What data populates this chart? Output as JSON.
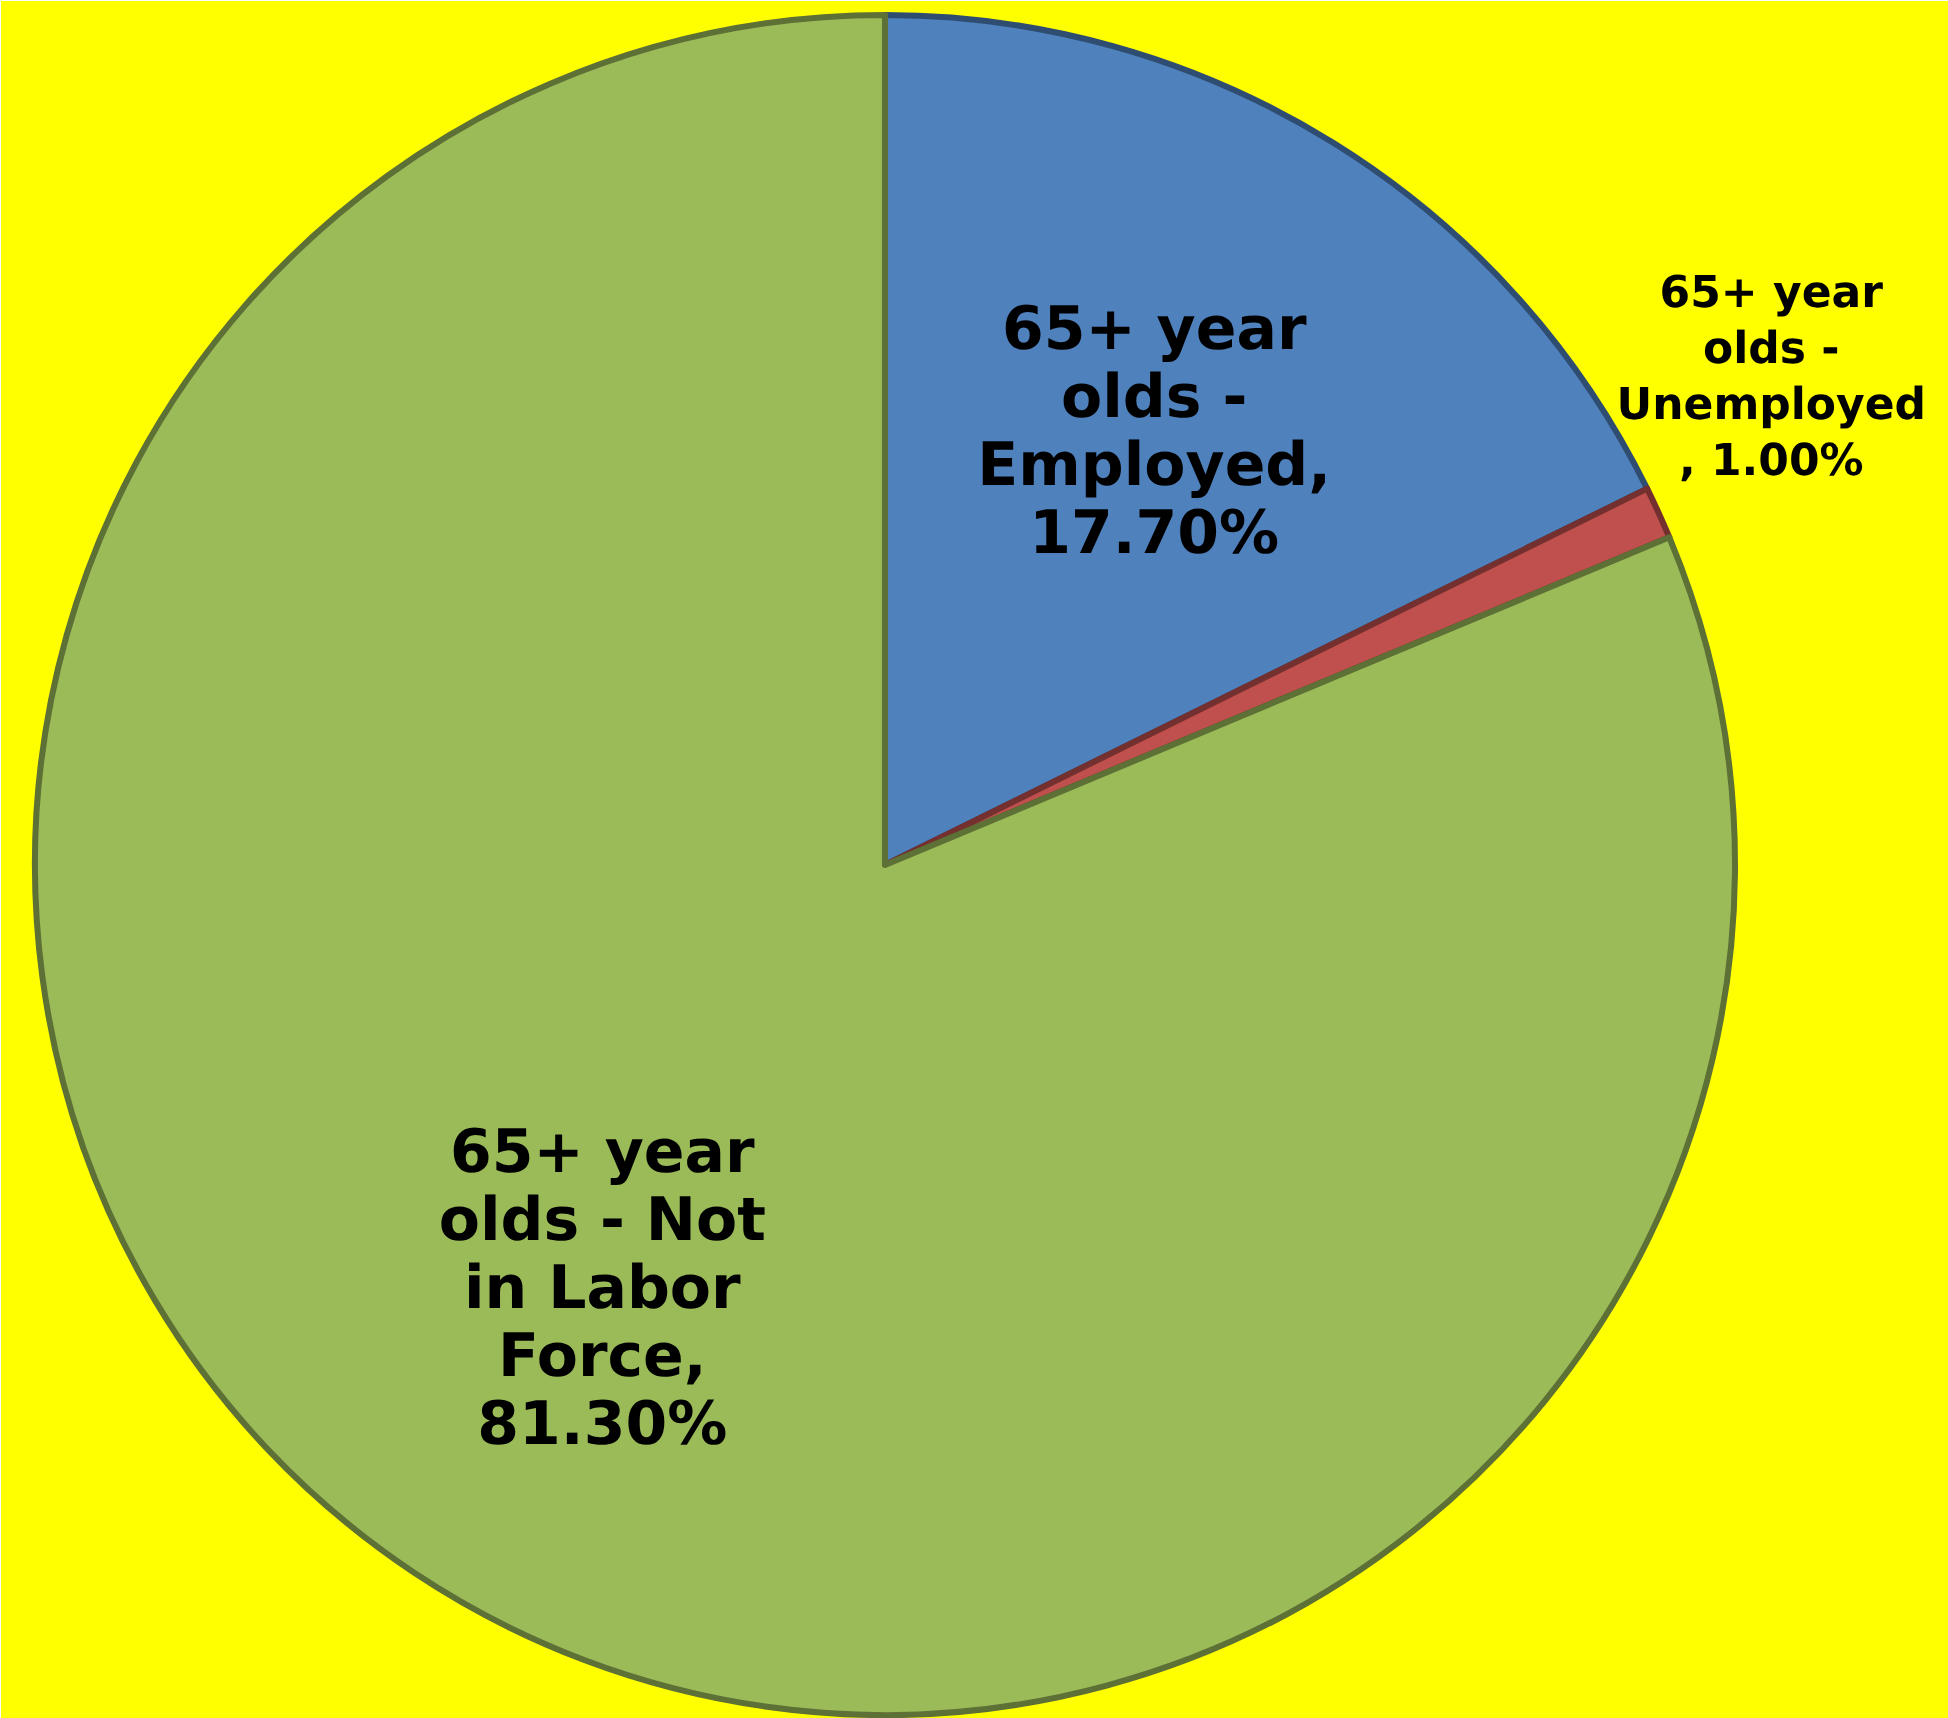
{
  "chart_data": {
    "type": "pie",
    "categories": [
      "65+ year olds - Employed",
      "65+ year olds - Unemployed",
      "65+ year olds - Not in Labor Force"
    ],
    "values": [
      17.7,
      1.0,
      81.3
    ],
    "value_labels": [
      ", 17.70%",
      ", 1.00%",
      ", 81.30%"
    ],
    "colors": [
      "#4f81bd",
      "#c0504d",
      "#9bbb59"
    ]
  }
}
